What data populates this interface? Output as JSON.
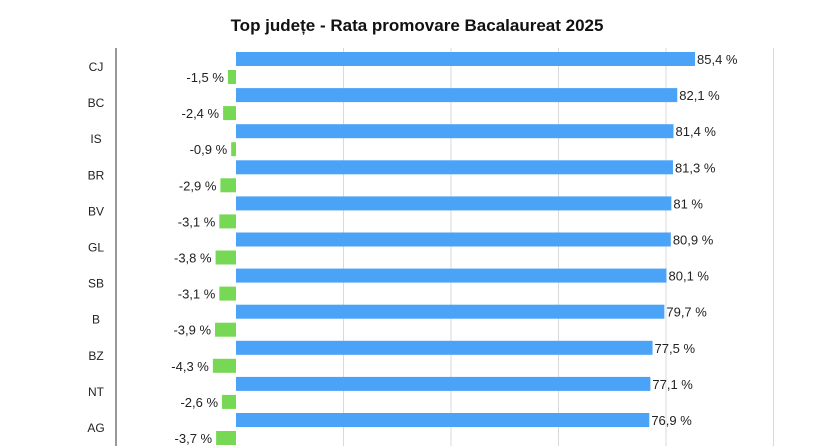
{
  "chart_data": {
    "type": "bar",
    "title": "Top județe - Rata promovare Bacalaureat 2025",
    "categories": [
      "CJ",
      "BC",
      "IS",
      "BR",
      "BV",
      "GL",
      "SB",
      "B",
      "BZ",
      "NT",
      "AG"
    ],
    "series": [
      {
        "values": [
          85.4,
          82.1,
          81.4,
          81.3,
          81,
          80.9,
          80.1,
          79.7,
          77.5,
          77.1,
          76.9
        ],
        "labels": [
          "85,4 %",
          "82,1 %",
          "81,4 %",
          "81,3 %",
          "81 %",
          "80,9 %",
          "80,1 %",
          "79,7 %",
          "77,5 %",
          "77,1 %",
          "76,9 %"
        ],
        "color": "#4aa3f7"
      },
      {
        "values": [
          -1.5,
          -2.4,
          -0.9,
          -2.9,
          -3.1,
          -3.8,
          -3.1,
          -3.9,
          -4.3,
          -2.6,
          -3.7
        ],
        "labels": [
          "-1,5 %",
          "-2,4 %",
          "-0,9 %",
          "-2,9 %",
          "-3,1 %",
          "-3,8 %",
          "-3,1 %",
          "-3,9 %",
          "-4,3 %",
          "-2,6 %",
          "-3,7 %"
        ],
        "color": "#76d854"
      }
    ],
    "xlim": [
      -5,
      100
    ],
    "grid": true,
    "legend": "none"
  }
}
